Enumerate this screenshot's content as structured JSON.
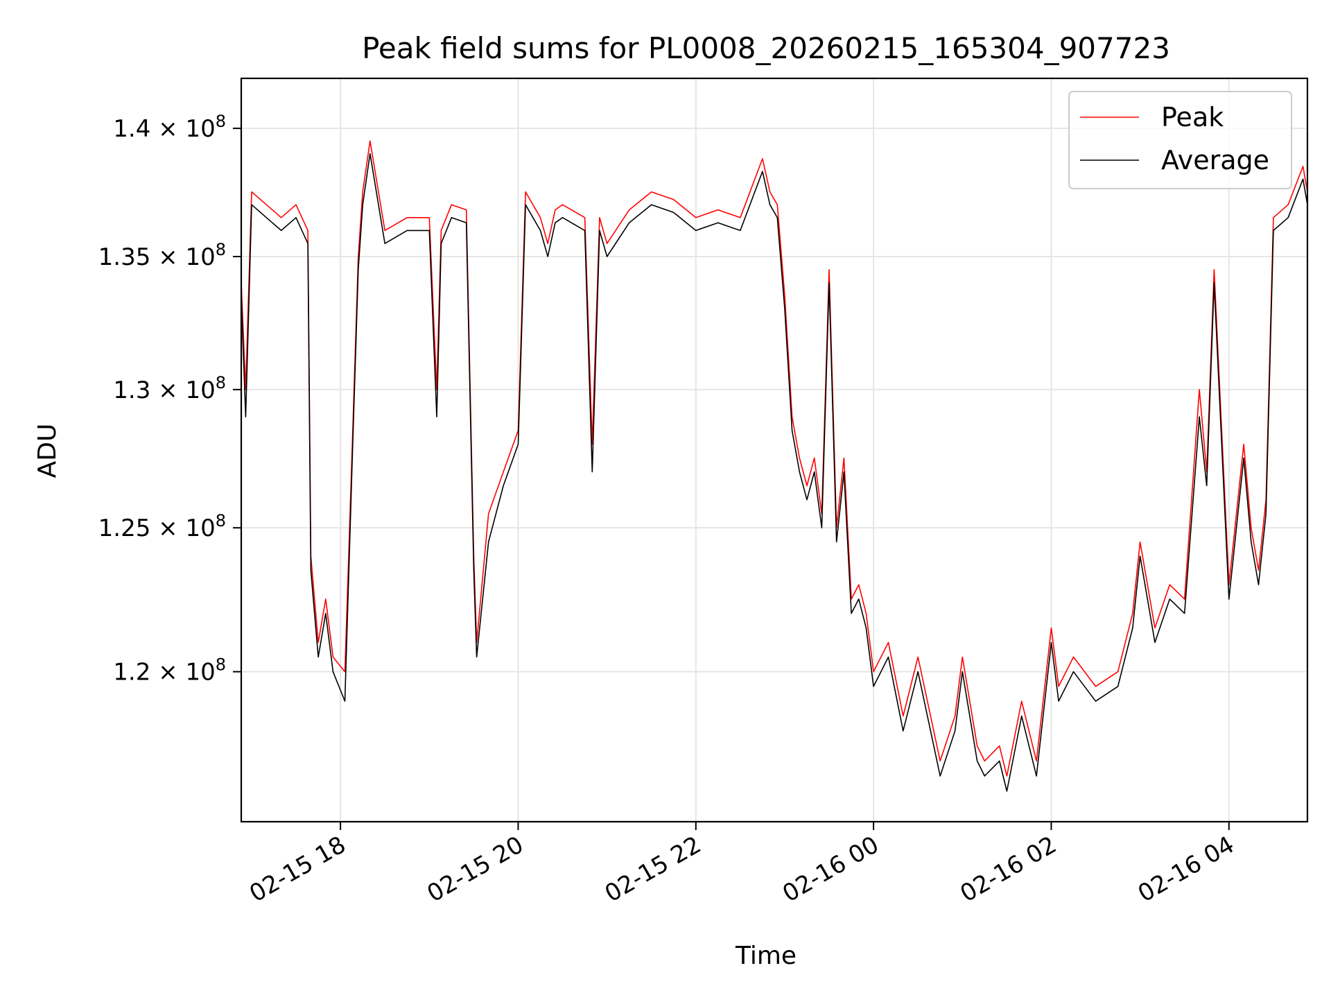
{
  "chart_data": {
    "type": "line",
    "title": "Peak field sums for PL0008_20260215_165304_907723",
    "xlabel": "Time",
    "ylabel": "ADU",
    "yscale": "log",
    "x_range": [
      "2026-02-15 16:53",
      "2026-02-16 04:53"
    ],
    "ylim": [
      115000000.0,
      142000000.0
    ],
    "grid": true,
    "legend_position": "upper right",
    "x_ticks": [
      {
        "value": "2026-02-15 18:00",
        "label": "02-15 18"
      },
      {
        "value": "2026-02-15 20:00",
        "label": "02-15 20"
      },
      {
        "value": "2026-02-15 22:00",
        "label": "02-15 22"
      },
      {
        "value": "2026-02-16 00:00",
        "label": "02-16 00"
      },
      {
        "value": "2026-02-16 02:00",
        "label": "02-16 02"
      },
      {
        "value": "2026-02-16 04:00",
        "label": "02-16 04"
      }
    ],
    "y_ticks": [
      {
        "value": 120000000.0,
        "mantissa": "1.2"
      },
      {
        "value": 125000000.0,
        "mantissa": "1.25"
      },
      {
        "value": 130000000.0,
        "mantissa": "1.3"
      },
      {
        "value": 135000000.0,
        "mantissa": "1.35"
      },
      {
        "value": 140000000.0,
        "mantissa": "1.4"
      }
    ],
    "y_tick_base": "10",
    "y_tick_exponent": "8",
    "series": [
      {
        "name": "Peak",
        "color": "#ff0000",
        "x": [
          "2026-02-15 16:53",
          "2026-02-15 16:56",
          "2026-02-15 17:00",
          "2026-02-15 17:10",
          "2026-02-15 17:20",
          "2026-02-15 17:30",
          "2026-02-15 17:38",
          "2026-02-15 17:40",
          "2026-02-15 17:45",
          "2026-02-15 17:50",
          "2026-02-15 17:55",
          "2026-02-15 18:03",
          "2026-02-15 18:08",
          "2026-02-15 18:12",
          "2026-02-15 18:15",
          "2026-02-15 18:20",
          "2026-02-15 18:30",
          "2026-02-15 18:45",
          "2026-02-15 19:00",
          "2026-02-15 19:05",
          "2026-02-15 19:08",
          "2026-02-15 19:15",
          "2026-02-15 19:25",
          "2026-02-15 19:30",
          "2026-02-15 19:32",
          "2026-02-15 19:40",
          "2026-02-15 19:50",
          "2026-02-15 20:00",
          "2026-02-15 20:05",
          "2026-02-15 20:15",
          "2026-02-15 20:20",
          "2026-02-15 20:25",
          "2026-02-15 20:30",
          "2026-02-15 20:45",
          "2026-02-15 20:50",
          "2026-02-15 20:55",
          "2026-02-15 21:00",
          "2026-02-15 21:15",
          "2026-02-15 21:30",
          "2026-02-15 21:45",
          "2026-02-15 22:00",
          "2026-02-15 22:15",
          "2026-02-15 22:25",
          "2026-02-15 22:30",
          "2026-02-15 22:45",
          "2026-02-15 22:50",
          "2026-02-15 22:55",
          "2026-02-15 23:00",
          "2026-02-15 23:05",
          "2026-02-15 23:10",
          "2026-02-15 23:15",
          "2026-02-15 23:20",
          "2026-02-15 23:25",
          "2026-02-15 23:30",
          "2026-02-15 23:35",
          "2026-02-15 23:40",
          "2026-02-15 23:45",
          "2026-02-15 23:50",
          "2026-02-15 23:55",
          "2026-02-16 00:00",
          "2026-02-16 00:05",
          "2026-02-16 00:10",
          "2026-02-16 00:20",
          "2026-02-16 00:30",
          "2026-02-16 00:45",
          "2026-02-16 00:55",
          "2026-02-16 01:00",
          "2026-02-16 01:10",
          "2026-02-16 01:15",
          "2026-02-16 01:25",
          "2026-02-16 01:30",
          "2026-02-16 01:40",
          "2026-02-16 01:50",
          "2026-02-16 02:00",
          "2026-02-16 02:05",
          "2026-02-16 02:15",
          "2026-02-16 02:30",
          "2026-02-16 02:45",
          "2026-02-16 02:55",
          "2026-02-16 03:00",
          "2026-02-16 03:10",
          "2026-02-16 03:20",
          "2026-02-16 03:30",
          "2026-02-16 03:40",
          "2026-02-16 03:45",
          "2026-02-16 03:50",
          "2026-02-16 04:00",
          "2026-02-16 04:10",
          "2026-02-16 04:15",
          "2026-02-16 04:20",
          "2026-02-16 04:25",
          "2026-02-16 04:30",
          "2026-02-16 04:40",
          "2026-02-16 04:50",
          "2026-02-16 04:53"
        ],
        "values": [
          134000000.0,
          130000000.0,
          137500000.0,
          137000000.0,
          136500000.0,
          137000000.0,
          136000000.0,
          124000000.0,
          121000000.0,
          122500000.0,
          120500000.0,
          120000000.0,
          128000000.0,
          135000000.0,
          137500000.0,
          139500000.0,
          136000000.0,
          136500000.0,
          136500000.0,
          130000000.0,
          136000000.0,
          137000000.0,
          136800000.0,
          124000000.0,
          121000000.0,
          125500000.0,
          127000000.0,
          128500000.0,
          137500000.0,
          136500000.0,
          135500000.0,
          136800000.0,
          137000000.0,
          136500000.0,
          128000000.0,
          136500000.0,
          135500000.0,
          136800000.0,
          137500000.0,
          137200000.0,
          136500000.0,
          136800000.0,
          136600000.0,
          136500000.0,
          138800000.0,
          137500000.0,
          137000000.0,
          133500000.0,
          129000000.0,
          127500000.0,
          126500000.0,
          127500000.0,
          125500000.0,
          134500000.0,
          125000000.0,
          127500000.0,
          122500000.0,
          123000000.0,
          122000000.0,
          120000000.0,
          120500000.0,
          121000000.0,
          118500000.0,
          120500000.0,
          117000000.0,
          118500000.0,
          120500000.0,
          117500000.0,
          117000000.0,
          117500000.0,
          116500000.0,
          119000000.0,
          117000000.0,
          121500000.0,
          119500000.0,
          120500000.0,
          119500000.0,
          120000000.0,
          122000000.0,
          124500000.0,
          121500000.0,
          123000000.0,
          122500000.0,
          130000000.0,
          127000000.0,
          134500000.0,
          123000000.0,
          128000000.0,
          125000000.0,
          123500000.0,
          126000000.0,
          136500000.0,
          137000000.0,
          138500000.0,
          137500000.0
        ]
      },
      {
        "name": "Average",
        "color": "#000000",
        "x": [
          "2026-02-15 16:53",
          "2026-02-15 16:56",
          "2026-02-15 17:00",
          "2026-02-15 17:10",
          "2026-02-15 17:20",
          "2026-02-15 17:30",
          "2026-02-15 17:38",
          "2026-02-15 17:40",
          "2026-02-15 17:45",
          "2026-02-15 17:50",
          "2026-02-15 17:55",
          "2026-02-15 18:03",
          "2026-02-15 18:08",
          "2026-02-15 18:12",
          "2026-02-15 18:15",
          "2026-02-15 18:20",
          "2026-02-15 18:30",
          "2026-02-15 18:45",
          "2026-02-15 19:00",
          "2026-02-15 19:05",
          "2026-02-15 19:08",
          "2026-02-15 19:15",
          "2026-02-15 19:25",
          "2026-02-15 19:30",
          "2026-02-15 19:32",
          "2026-02-15 19:40",
          "2026-02-15 19:50",
          "2026-02-15 20:00",
          "2026-02-15 20:05",
          "2026-02-15 20:15",
          "2026-02-15 20:20",
          "2026-02-15 20:25",
          "2026-02-15 20:30",
          "2026-02-15 20:45",
          "2026-02-15 20:50",
          "2026-02-15 20:55",
          "2026-02-15 21:00",
          "2026-02-15 21:15",
          "2026-02-15 21:30",
          "2026-02-15 21:45",
          "2026-02-15 22:00",
          "2026-02-15 22:15",
          "2026-02-15 22:25",
          "2026-02-15 22:30",
          "2026-02-15 22:45",
          "2026-02-15 22:50",
          "2026-02-15 22:55",
          "2026-02-15 23:00",
          "2026-02-15 23:05",
          "2026-02-15 23:10",
          "2026-02-15 23:15",
          "2026-02-15 23:20",
          "2026-02-15 23:25",
          "2026-02-15 23:30",
          "2026-02-15 23:35",
          "2026-02-15 23:40",
          "2026-02-15 23:45",
          "2026-02-15 23:50",
          "2026-02-15 23:55",
          "2026-02-16 00:00",
          "2026-02-16 00:05",
          "2026-02-16 00:10",
          "2026-02-16 00:20",
          "2026-02-16 00:30",
          "2026-02-16 00:45",
          "2026-02-16 00:55",
          "2026-02-16 01:00",
          "2026-02-16 01:10",
          "2026-02-16 01:15",
          "2026-02-16 01:25",
          "2026-02-16 01:30",
          "2026-02-16 01:40",
          "2026-02-16 01:50",
          "2026-02-16 02:00",
          "2026-02-16 02:05",
          "2026-02-16 02:15",
          "2026-02-16 02:30",
          "2026-02-16 02:45",
          "2026-02-16 02:55",
          "2026-02-16 03:00",
          "2026-02-16 03:10",
          "2026-02-16 03:20",
          "2026-02-16 03:30",
          "2026-02-16 03:40",
          "2026-02-16 03:45",
          "2026-02-16 03:50",
          "2026-02-16 04:00",
          "2026-02-16 04:10",
          "2026-02-16 04:15",
          "2026-02-16 04:20",
          "2026-02-16 04:25",
          "2026-02-16 04:30",
          "2026-02-16 04:40",
          "2026-02-16 04:50",
          "2026-02-16 04:53"
        ],
        "values": [
          133500000.0,
          129000000.0,
          137000000.0,
          136500000.0,
          136000000.0,
          136500000.0,
          135500000.0,
          123500000.0,
          120500000.0,
          122000000.0,
          120000000.0,
          119000000.0,
          127500000.0,
          134500000.0,
          137000000.0,
          139000000.0,
          135500000.0,
          136000000.0,
          136000000.0,
          129000000.0,
          135500000.0,
          136500000.0,
          136300000.0,
          123500000.0,
          120500000.0,
          124500000.0,
          126500000.0,
          128000000.0,
          137000000.0,
          136000000.0,
          135000000.0,
          136300000.0,
          136500000.0,
          136000000.0,
          127000000.0,
          136000000.0,
          135000000.0,
          136300000.0,
          137000000.0,
          136700000.0,
          136000000.0,
          136300000.0,
          136100000.0,
          136000000.0,
          138300000.0,
          137000000.0,
          136500000.0,
          133000000.0,
          128500000.0,
          127000000.0,
          126000000.0,
          127000000.0,
          125000000.0,
          134000000.0,
          124500000.0,
          127000000.0,
          122000000.0,
          122500000.0,
          121500000.0,
          119500000.0,
          120000000.0,
          120500000.0,
          118000000.0,
          120000000.0,
          116500000.0,
          118000000.0,
          120000000.0,
          117000000.0,
          116500000.0,
          117000000.0,
          116000000.0,
          118500000.0,
          116500000.0,
          121000000.0,
          119000000.0,
          120000000.0,
          119000000.0,
          119500000.0,
          121500000.0,
          124000000.0,
          121000000.0,
          122500000.0,
          122000000.0,
          129000000.0,
          126500000.0,
          134000000.0,
          122500000.0,
          127500000.0,
          124500000.0,
          123000000.0,
          125500000.0,
          136000000.0,
          136500000.0,
          138000000.0,
          137000000.0
        ]
      }
    ]
  }
}
